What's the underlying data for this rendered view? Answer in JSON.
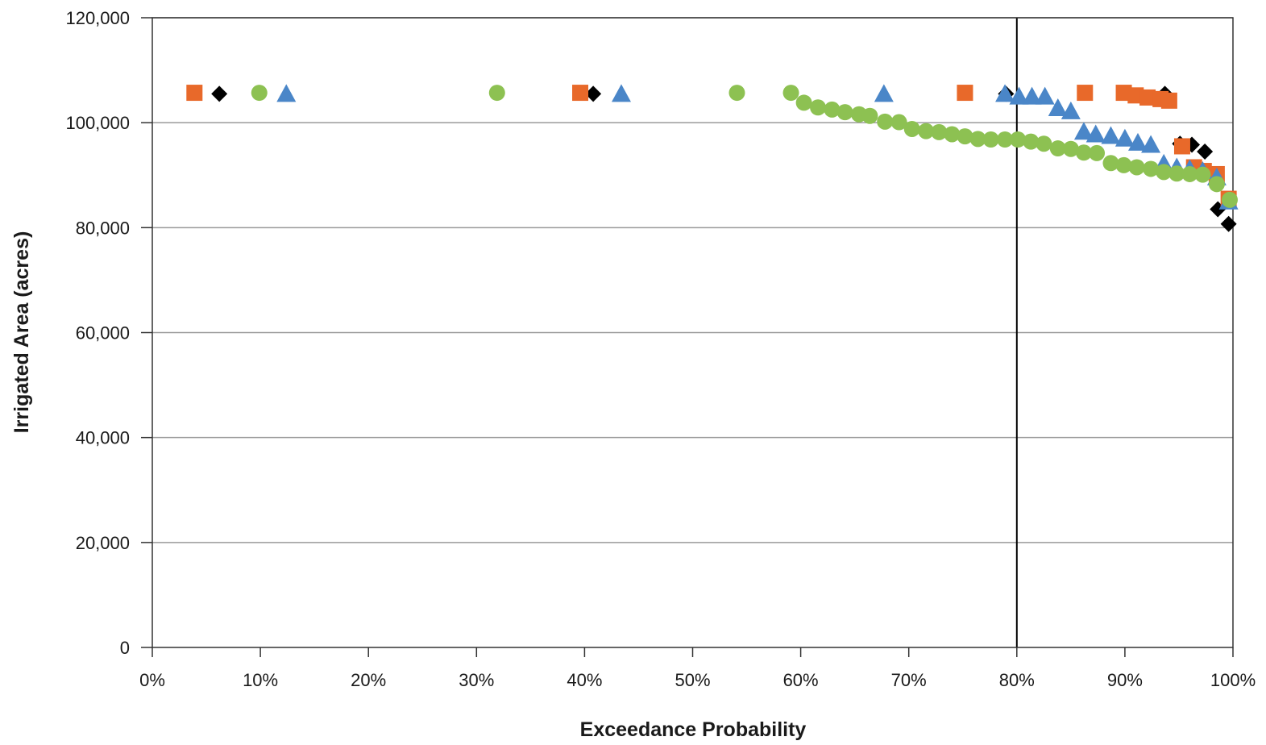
{
  "chart_data": {
    "type": "scatter",
    "title": "",
    "xlabel": "Exceedance Probability",
    "ylabel": "Irrigated Area (acres)",
    "xlim": [
      0,
      100
    ],
    "ylim": [
      0,
      120000
    ],
    "x_ticks": [
      {
        "value": 0,
        "label": "0%"
      },
      {
        "value": 10,
        "label": "10%"
      },
      {
        "value": 20,
        "label": "20%"
      },
      {
        "value": 30,
        "label": "30%"
      },
      {
        "value": 40,
        "label": "40%"
      },
      {
        "value": 50,
        "label": "50%"
      },
      {
        "value": 60,
        "label": "60%"
      },
      {
        "value": 70,
        "label": "70%"
      },
      {
        "value": 80,
        "label": "80%"
      },
      {
        "value": 90,
        "label": "90%"
      },
      {
        "value": 100,
        "label": "100%"
      }
    ],
    "y_ticks": [
      {
        "value": 0,
        "label": "0"
      },
      {
        "value": 20000,
        "label": "20,000"
      },
      {
        "value": 40000,
        "label": "40,000"
      },
      {
        "value": 60000,
        "label": "60,000"
      },
      {
        "value": 80000,
        "label": "80,000"
      },
      {
        "value": 100000,
        "label": "100,000"
      },
      {
        "value": 120000,
        "label": "120,000"
      }
    ],
    "grid": "horizontal",
    "reference_line": {
      "x": 80,
      "color": "#000000"
    },
    "legend": "none",
    "series": [
      {
        "marker": "diamond",
        "color": "#000000",
        "points": [
          [
            6.2,
            105500
          ],
          [
            40.8,
            105500
          ],
          [
            79,
            105500
          ],
          [
            93.7,
            105500
          ],
          [
            95.1,
            96000
          ],
          [
            96.2,
            95800
          ],
          [
            97.4,
            94500
          ],
          [
            98.6,
            83500
          ],
          [
            99.6,
            80700
          ]
        ]
      },
      {
        "marker": "square",
        "color": "#E8692A",
        "points": [
          [
            3.9,
            105700
          ],
          [
            39.6,
            105700
          ],
          [
            75.2,
            105700
          ],
          [
            86.3,
            105700
          ],
          [
            89.9,
            105700
          ],
          [
            91,
            105200
          ],
          [
            92.1,
            104800
          ],
          [
            93.3,
            104500
          ],
          [
            94.1,
            104200
          ],
          [
            95.3,
            95500
          ],
          [
            96.4,
            91500
          ],
          [
            97.3,
            90800
          ],
          [
            98.5,
            90200
          ],
          [
            99.6,
            85500
          ]
        ]
      },
      {
        "marker": "triangle",
        "color": "#4A86C8",
        "points": [
          [
            12.4,
            105500
          ],
          [
            43.4,
            105500
          ],
          [
            67.7,
            105500
          ],
          [
            78.9,
            105500
          ],
          [
            80.2,
            105000
          ],
          [
            81.4,
            105000
          ],
          [
            82.6,
            105000
          ],
          [
            83.8,
            102800
          ],
          [
            85,
            102200
          ],
          [
            86.2,
            98300
          ],
          [
            87.3,
            97800
          ],
          [
            88.7,
            97500
          ],
          [
            90,
            97000
          ],
          [
            91.2,
            96200
          ],
          [
            92.4,
            95800
          ],
          [
            93.6,
            92200
          ],
          [
            94.8,
            91500
          ],
          [
            96,
            91200
          ],
          [
            97.2,
            90800
          ],
          [
            98.5,
            89600
          ],
          [
            99.6,
            85000
          ]
        ]
      },
      {
        "marker": "circle",
        "color": "#8DC152",
        "points": [
          [
            9.9,
            105700
          ],
          [
            31.9,
            105700
          ],
          [
            54.1,
            105700
          ],
          [
            59.1,
            105700
          ],
          [
            60.3,
            103800
          ],
          [
            61.6,
            102900
          ],
          [
            62.9,
            102500
          ],
          [
            64.1,
            102000
          ],
          [
            65.4,
            101600
          ],
          [
            66.4,
            101300
          ],
          [
            67.8,
            100200
          ],
          [
            69.1,
            100100
          ],
          [
            70.3,
            98800
          ],
          [
            71.6,
            98400
          ],
          [
            72.8,
            98200
          ],
          [
            74,
            97800
          ],
          [
            75.2,
            97400
          ],
          [
            76.4,
            96900
          ],
          [
            77.6,
            96800
          ],
          [
            78.9,
            96800
          ],
          [
            80.1,
            96800
          ],
          [
            81.3,
            96400
          ],
          [
            82.5,
            96000
          ],
          [
            83.8,
            95100
          ],
          [
            85,
            95000
          ],
          [
            86.2,
            94300
          ],
          [
            87.4,
            94200
          ],
          [
            88.7,
            92300
          ],
          [
            89.9,
            91900
          ],
          [
            91.1,
            91500
          ],
          [
            92.4,
            91200
          ],
          [
            93.6,
            90600
          ],
          [
            94.8,
            90300
          ],
          [
            96,
            90200
          ],
          [
            97.2,
            90100
          ],
          [
            98.5,
            88300
          ],
          [
            99.7,
            85300
          ]
        ]
      }
    ]
  }
}
